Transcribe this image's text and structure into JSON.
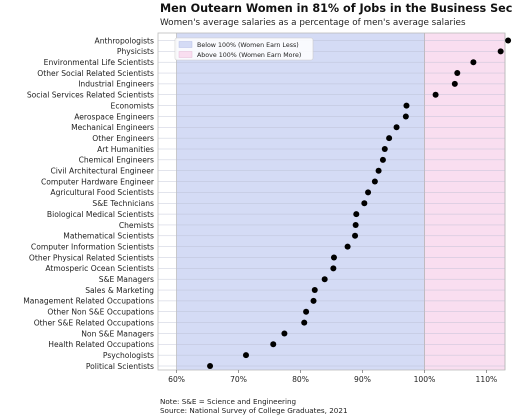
{
  "chart_data": {
    "type": "scatter",
    "title": "Men Outearn Women in 81% of Jobs in the Business Sector",
    "subtitle": "Women's average salaries as a percentage of men's average salaries",
    "xlabel": "",
    "ylabel": "",
    "xlim": [
      57,
      113
    ],
    "xticks": [
      60,
      70,
      80,
      90,
      100,
      110
    ],
    "xtick_labels": [
      "60%",
      "70%",
      "80%",
      "90%",
      "100%",
      "110%"
    ],
    "grid": true,
    "legend_position": "top-left",
    "regions": [
      {
        "label": "Below 100% (Women Earn Less)",
        "from": 60,
        "to": 100,
        "color": "#d4dbf5"
      },
      {
        "label": "Above 100% (Women Earn More)",
        "from": 100,
        "to": 115,
        "color": "#f9def0"
      }
    ],
    "categories": [
      "Anthropologists",
      "Physicists",
      "Environmental Life Scientists",
      "Other Social Related Scientists",
      "Industrial Engineers",
      "Social Services Related Scientists",
      "Economists",
      "Aerospace Engineers",
      "Mechanical Engineers",
      "Other Engineers",
      "Art Humanities",
      "Chemical Engineers",
      "Civil Architectural Engineer",
      "Computer Hardware Engineer",
      "Agricultural Food Scientists",
      "S&E Technicians",
      "Biological Medical Scientists",
      "Chemists",
      "Mathematical Scientists",
      "Computer Information Scientists",
      "Other Physical Related Scientists",
      "Atmosperic Ocean Scientists",
      "S&E Managers",
      "Sales & Marketing",
      "Management Related Occupations",
      "Other Non S&E Occupations",
      "Other S&E Related Occupations",
      "Non S&E Managers",
      "Health Related Occupations",
      "Psychologists",
      "Political Scientists"
    ],
    "values": [
      113.5,
      112.3,
      107.9,
      105.3,
      104.9,
      101.8,
      97.1,
      97.0,
      95.5,
      94.3,
      93.6,
      93.3,
      92.6,
      92.0,
      90.9,
      90.3,
      89.0,
      88.9,
      88.8,
      87.6,
      85.4,
      85.3,
      83.9,
      82.3,
      82.1,
      80.9,
      80.6,
      77.4,
      75.6,
      71.2,
      65.4
    ],
    "point_color": "#000000",
    "note": "Note: S&E = Science and Engineering",
    "source": "Source: National Survey of College Graduates, 2021"
  }
}
